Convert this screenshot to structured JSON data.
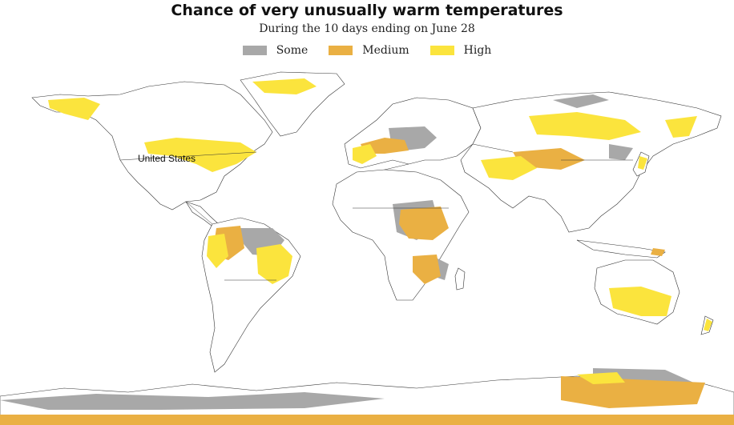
{
  "title": "Chance of very unusually warm temperatures",
  "subtitle": "During the 10 days ending on June 28",
  "legend": [
    {
      "label": "Some",
      "color": "#a8a8a8"
    },
    {
      "label": "Medium",
      "color": "#eab043"
    },
    {
      "label": "High",
      "color": "#fbe43d"
    }
  ],
  "colors": {
    "land": "#ffffff",
    "outline": "#333333",
    "some": "#a8a8a8",
    "medium": "#eab043",
    "high": "#fbe43d"
  },
  "map_labels": {
    "us": "United States"
  }
}
